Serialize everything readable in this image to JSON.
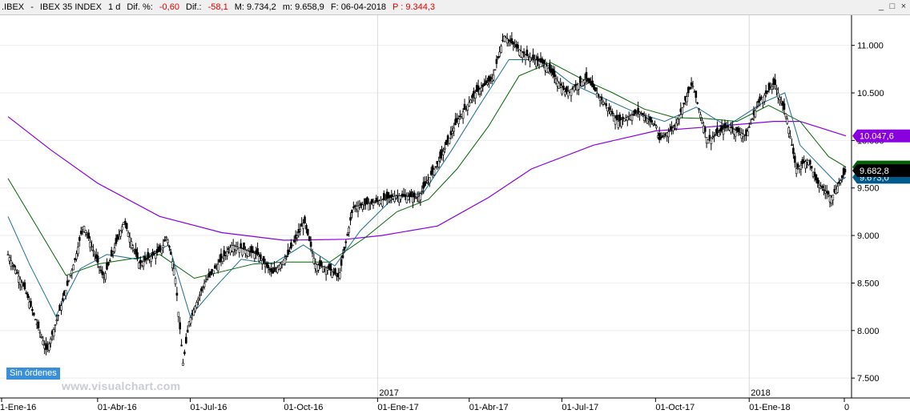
{
  "header": {
    "symbol": ".IBEX",
    "name": "IBEX 35 INDEX",
    "period": "1 d",
    "dif_pct_label": "Dif. %:",
    "dif_pct_value": "-0,60",
    "dif_label": "Dif.:",
    "dif_value": "-58,1",
    "max_label": "M: 9.734,2",
    "min_label": "m: 9.658,9",
    "date_label": "F: 06-04-2018",
    "price_label": "P : 9.344,3"
  },
  "window": {
    "minimize": "_",
    "maximize": "□",
    "close": "×"
  },
  "status": {
    "orders": "Sin órdenes"
  },
  "watermark": "www.visualchart.com",
  "colors": {
    "candles": "#000000",
    "ma_long": "#8800dd",
    "ma_medium": "#006400",
    "ma_short": "#1a6f8f",
    "last_price_badge": "#000000",
    "ma_long_badge": "#8800dd",
    "ma_medium_badge": "#006400",
    "ma_short_badge": "#005a8c"
  },
  "chart_data": {
    "type": "candlestick",
    "symbol": "IBEX 35 INDEX",
    "ylim": [
      7400,
      11250
    ],
    "y_ticks": [
      "11.000",
      "10.500",
      "10.000",
      "9.500",
      "9.000",
      "8.500",
      "8.000",
      "7.500"
    ],
    "y_tick_values": [
      11000,
      10500,
      10000,
      9500,
      9000,
      8500,
      8000,
      7500
    ],
    "x_ticks": [
      "1-Ene-16",
      "01-Abr-16",
      "01-Jul-16",
      "01-Oct-16",
      "01-Ene-17",
      "01-Abr-17",
      "01-Jul-17",
      "01-Oct-17",
      "01-Ene-18",
      "0"
    ],
    "year_markers": [
      "2017",
      "2018"
    ],
    "price_path": [
      {
        "date": "2016-01-04",
        "close": 8800
      },
      {
        "date": "2016-01-20",
        "close": 8450
      },
      {
        "date": "2016-02-11",
        "close": 7780
      },
      {
        "date": "2016-02-25",
        "close": 8250
      },
      {
        "date": "2016-03-10",
        "close": 8750
      },
      {
        "date": "2016-03-18",
        "close": 9120
      },
      {
        "date": "2016-04-07",
        "close": 8550
      },
      {
        "date": "2016-04-27",
        "close": 9150
      },
      {
        "date": "2016-05-12",
        "close": 8700
      },
      {
        "date": "2016-06-03",
        "close": 8850
      },
      {
        "date": "2016-06-08",
        "close": 9000
      },
      {
        "date": "2016-06-16",
        "close": 8600
      },
      {
        "date": "2016-06-24",
        "close": 7650
      },
      {
        "date": "2016-06-30",
        "close": 8100
      },
      {
        "date": "2016-07-15",
        "close": 8500
      },
      {
        "date": "2016-08-11",
        "close": 8900
      },
      {
        "date": "2016-09-05",
        "close": 8800
      },
      {
        "date": "2016-09-20",
        "close": 8600
      },
      {
        "date": "2016-10-05",
        "close": 8800
      },
      {
        "date": "2016-10-21",
        "close": 9150
      },
      {
        "date": "2016-11-01",
        "close": 8700
      },
      {
        "date": "2016-11-14",
        "close": 8650
      },
      {
        "date": "2016-11-24",
        "close": 8560
      },
      {
        "date": "2016-12-08",
        "close": 9300
      },
      {
        "date": "2016-12-29",
        "close": 9350
      },
      {
        "date": "2017-01-20",
        "close": 9420
      },
      {
        "date": "2017-02-10",
        "close": 9400
      },
      {
        "date": "2017-03-03",
        "close": 9800
      },
      {
        "date": "2017-03-20",
        "close": 10200
      },
      {
        "date": "2017-04-07",
        "close": 10500
      },
      {
        "date": "2017-04-24",
        "close": 10650
      },
      {
        "date": "2017-05-05",
        "close": 11100
      },
      {
        "date": "2017-05-26",
        "close": 10900
      },
      {
        "date": "2017-06-15",
        "close": 10800
      },
      {
        "date": "2017-07-05",
        "close": 10500
      },
      {
        "date": "2017-07-25",
        "close": 10650
      },
      {
        "date": "2017-08-11",
        "close": 10400
      },
      {
        "date": "2017-08-25",
        "close": 10200
      },
      {
        "date": "2017-09-15",
        "close": 10300
      },
      {
        "date": "2017-10-02",
        "close": 10150
      },
      {
        "date": "2017-10-04",
        "close": 10000
      },
      {
        "date": "2017-10-20",
        "close": 10150
      },
      {
        "date": "2017-11-06",
        "close": 10600
      },
      {
        "date": "2017-11-21",
        "close": 10000
      },
      {
        "date": "2017-12-11",
        "close": 10150
      },
      {
        "date": "2017-12-29",
        "close": 10050
      },
      {
        "date": "2018-01-10",
        "close": 10400
      },
      {
        "date": "2018-01-26",
        "close": 10600
      },
      {
        "date": "2018-02-07",
        "close": 10250
      },
      {
        "date": "2018-02-16",
        "close": 9700
      },
      {
        "date": "2018-02-28",
        "close": 9800
      },
      {
        "date": "2018-03-09",
        "close": 9550
      },
      {
        "date": "2018-03-23",
        "close": 9400
      },
      {
        "date": "2018-04-06",
        "close": 9682.8
      }
    ],
    "moving_averages": [
      {
        "label": "10.047,6",
        "color": "#8800dd",
        "points": [
          {
            "date": "2016-01-04",
            "value": 10250
          },
          {
            "date": "2016-02-15",
            "value": 9900
          },
          {
            "date": "2016-04-01",
            "value": 9550
          },
          {
            "date": "2016-06-01",
            "value": 9200
          },
          {
            "date": "2016-08-01",
            "value": 9030
          },
          {
            "date": "2016-10-01",
            "value": 8950
          },
          {
            "date": "2016-12-01",
            "value": 8960
          },
          {
            "date": "2017-01-05",
            "value": 9000
          },
          {
            "date": "2017-03-01",
            "value": 9100
          },
          {
            "date": "2017-04-20",
            "value": 9400
          },
          {
            "date": "2017-06-01",
            "value": 9700
          },
          {
            "date": "2017-08-01",
            "value": 9950
          },
          {
            "date": "2017-10-01",
            "value": 10100
          },
          {
            "date": "2017-12-01",
            "value": 10150
          },
          {
            "date": "2018-01-25",
            "value": 10200
          },
          {
            "date": "2018-02-20",
            "value": 10200
          },
          {
            "date": "2018-04-06",
            "value": 10047.6
          }
        ]
      },
      {
        "label": "9.7??",
        "color": "#006400",
        "points": [
          {
            "date": "2016-01-04",
            "value": 9600
          },
          {
            "date": "2016-02-01",
            "value": 9100
          },
          {
            "date": "2016-03-01",
            "value": 8580
          },
          {
            "date": "2016-04-01",
            "value": 8700
          },
          {
            "date": "2016-05-01",
            "value": 8750
          },
          {
            "date": "2016-06-01",
            "value": 8800
          },
          {
            "date": "2016-07-05",
            "value": 8550
          },
          {
            "date": "2016-08-01",
            "value": 8620
          },
          {
            "date": "2016-09-01",
            "value": 8700
          },
          {
            "date": "2016-10-01",
            "value": 8720
          },
          {
            "date": "2016-11-15",
            "value": 8720
          },
          {
            "date": "2016-12-20",
            "value": 8980
          },
          {
            "date": "2017-01-20",
            "value": 9250
          },
          {
            "date": "2017-02-20",
            "value": 9380
          },
          {
            "date": "2017-03-20",
            "value": 9700
          },
          {
            "date": "2017-04-20",
            "value": 10150
          },
          {
            "date": "2017-05-20",
            "value": 10680
          },
          {
            "date": "2017-06-20",
            "value": 10820
          },
          {
            "date": "2017-07-20",
            "value": 10650
          },
          {
            "date": "2017-08-20",
            "value": 10500
          },
          {
            "date": "2017-09-20",
            "value": 10330
          },
          {
            "date": "2017-10-20",
            "value": 10240
          },
          {
            "date": "2017-11-20",
            "value": 10230
          },
          {
            "date": "2017-12-20",
            "value": 10200
          },
          {
            "date": "2018-01-20",
            "value": 10370
          },
          {
            "date": "2018-02-20",
            "value": 10200
          },
          {
            "date": "2018-03-20",
            "value": 9830
          },
          {
            "date": "2018-04-06",
            "value": 9720
          }
        ]
      },
      {
        "label": "9.6?3,0",
        "color": "#1a6f8f",
        "points": [
          {
            "date": "2016-01-04",
            "value": 9200
          },
          {
            "date": "2016-01-25",
            "value": 8700
          },
          {
            "date": "2016-02-20",
            "value": 8150
          },
          {
            "date": "2016-03-15",
            "value": 8650
          },
          {
            "date": "2016-04-10",
            "value": 8800
          },
          {
            "date": "2016-05-10",
            "value": 8750
          },
          {
            "date": "2016-06-10",
            "value": 8900
          },
          {
            "date": "2016-07-01",
            "value": 8150
          },
          {
            "date": "2016-07-25",
            "value": 8450
          },
          {
            "date": "2016-08-20",
            "value": 8750
          },
          {
            "date": "2016-09-20",
            "value": 8700
          },
          {
            "date": "2016-10-20",
            "value": 8900
          },
          {
            "date": "2016-11-20",
            "value": 8680
          },
          {
            "date": "2016-12-15",
            "value": 9050
          },
          {
            "date": "2017-01-15",
            "value": 9380
          },
          {
            "date": "2017-02-15",
            "value": 9450
          },
          {
            "date": "2017-03-15",
            "value": 9900
          },
          {
            "date": "2017-04-10",
            "value": 10350
          },
          {
            "date": "2017-05-10",
            "value": 10850
          },
          {
            "date": "2017-06-10",
            "value": 10850
          },
          {
            "date": "2017-07-10",
            "value": 10600
          },
          {
            "date": "2017-08-10",
            "value": 10450
          },
          {
            "date": "2017-09-10",
            "value": 10300
          },
          {
            "date": "2017-10-10",
            "value": 10200
          },
          {
            "date": "2017-11-10",
            "value": 10350
          },
          {
            "date": "2017-12-10",
            "value": 10150
          },
          {
            "date": "2018-01-15",
            "value": 10400
          },
          {
            "date": "2018-02-05",
            "value": 10500
          },
          {
            "date": "2018-02-20",
            "value": 9950
          },
          {
            "date": "2018-03-10",
            "value": 9750
          },
          {
            "date": "2018-03-28",
            "value": 9550
          },
          {
            "date": "2018-04-06",
            "value": 9613
          }
        ]
      }
    ],
    "last_price_label": "9.682,8",
    "last_price": 9682.8
  }
}
